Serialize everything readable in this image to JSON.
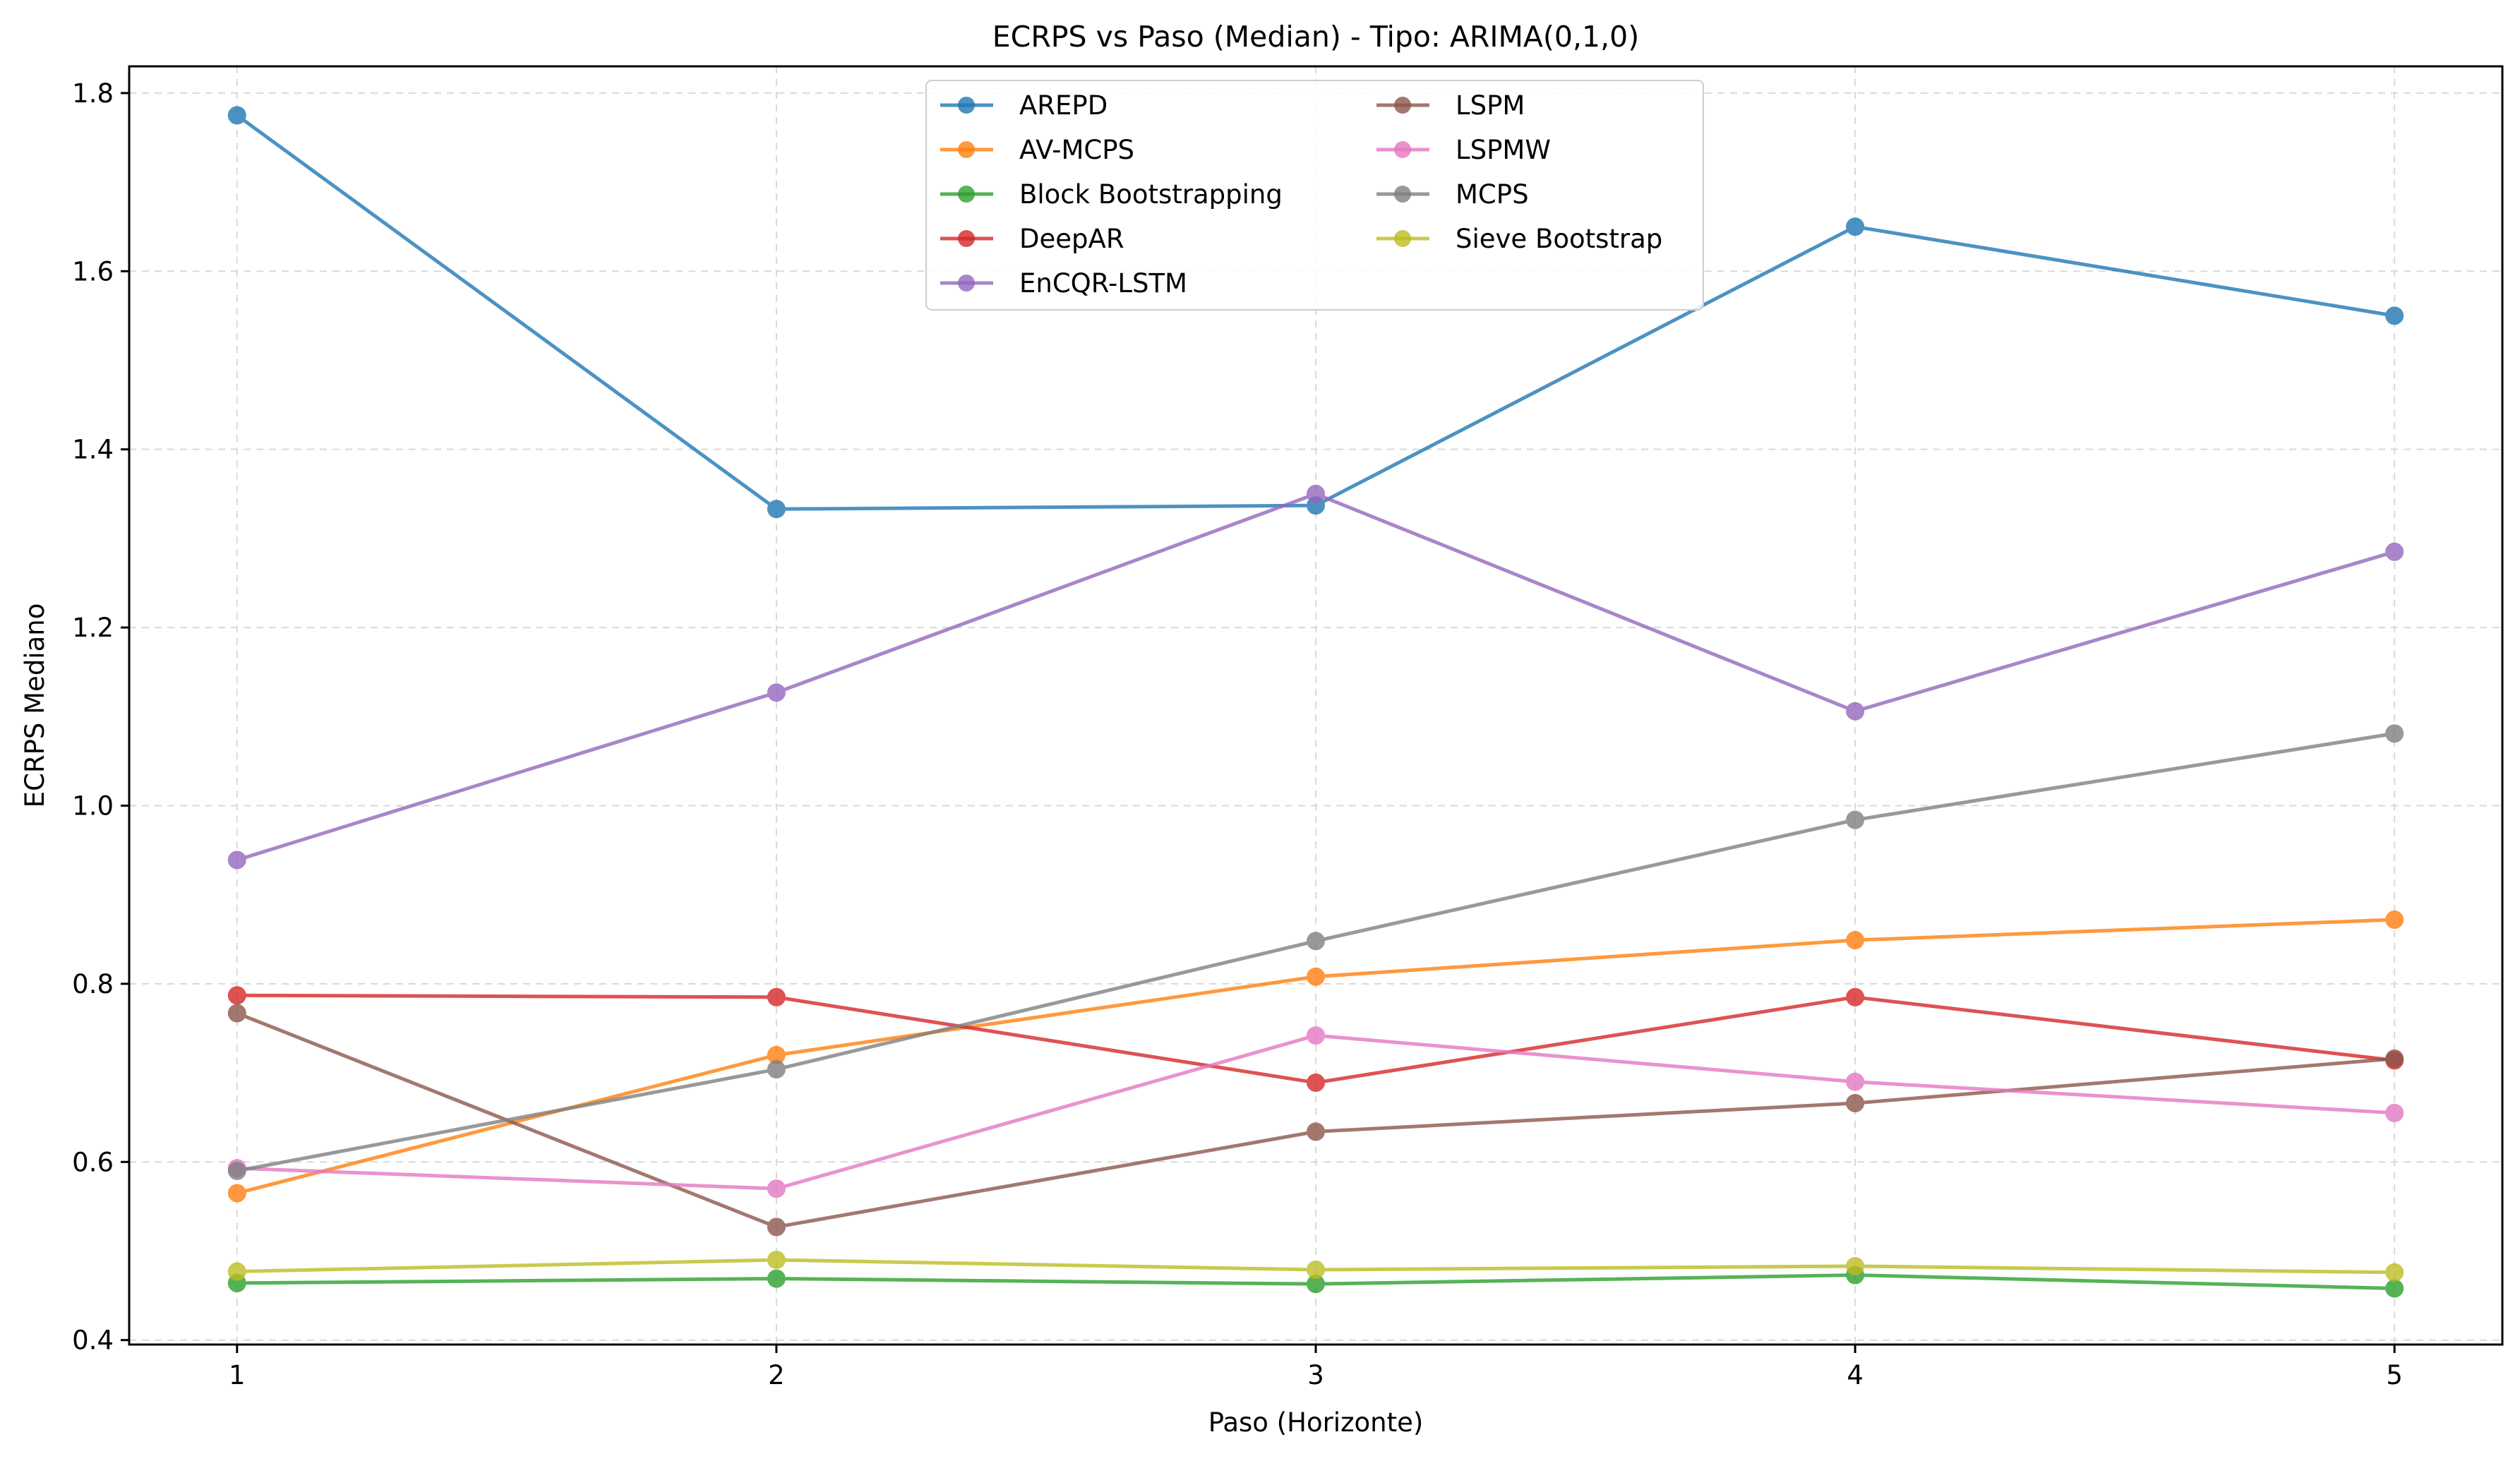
{
  "chart_data": {
    "type": "line",
    "title": "ECRPS vs Paso (Median) - Tipo: ARIMA(0,1,0)",
    "xlabel": "Paso (Horizonte)",
    "ylabel": "ECRPS Mediano",
    "x": [
      1,
      2,
      3,
      4,
      5
    ],
    "x_ticks": [
      "1",
      "2",
      "3",
      "4",
      "5"
    ],
    "xlim": [
      0.8,
      5.2
    ],
    "ylim": [
      0.395,
      1.83
    ],
    "y_ticks": [
      0.4,
      0.6,
      0.8,
      1.0,
      1.2,
      1.4,
      1.6,
      1.8
    ],
    "y_tick_labels": [
      "0.4",
      "0.6",
      "0.8",
      "1.0",
      "1.2",
      "1.4",
      "1.6",
      "1.8"
    ],
    "grid": true,
    "legend_position": "top-center",
    "legend_columns": 2,
    "series": [
      {
        "name": "AREPD",
        "color": "#1f77b4",
        "values": [
          1.775,
          1.333,
          1.337,
          1.65,
          1.55
        ]
      },
      {
        "name": "AV-MCPS",
        "color": "#ff7f0e",
        "values": [
          0.565,
          0.72,
          0.808,
          0.849,
          0.872
        ]
      },
      {
        "name": "Block Bootstrapping",
        "color": "#2ca02c",
        "values": [
          0.464,
          0.469,
          0.463,
          0.473,
          0.458
        ]
      },
      {
        "name": "DeepAR",
        "color": "#d62728",
        "values": [
          0.787,
          0.785,
          0.689,
          0.785,
          0.714
        ]
      },
      {
        "name": "EnCQR-LSTM",
        "color": "#9467bd",
        "values": [
          0.939,
          1.127,
          1.35,
          1.106,
          1.285
        ]
      },
      {
        "name": "LSPM",
        "color": "#8c564b",
        "values": [
          0.767,
          0.527,
          0.634,
          0.666,
          0.716
        ]
      },
      {
        "name": "LSPMW",
        "color": "#e377c2",
        "values": [
          0.593,
          0.57,
          0.742,
          0.69,
          0.655
        ]
      },
      {
        "name": "MCPS",
        "color": "#7f7f7f",
        "values": [
          0.59,
          0.704,
          0.848,
          0.984,
          1.081
        ]
      },
      {
        "name": "Sieve Bootstrap",
        "color": "#bcbd22",
        "values": [
          0.477,
          0.49,
          0.479,
          0.483,
          0.476
        ]
      }
    ]
  }
}
